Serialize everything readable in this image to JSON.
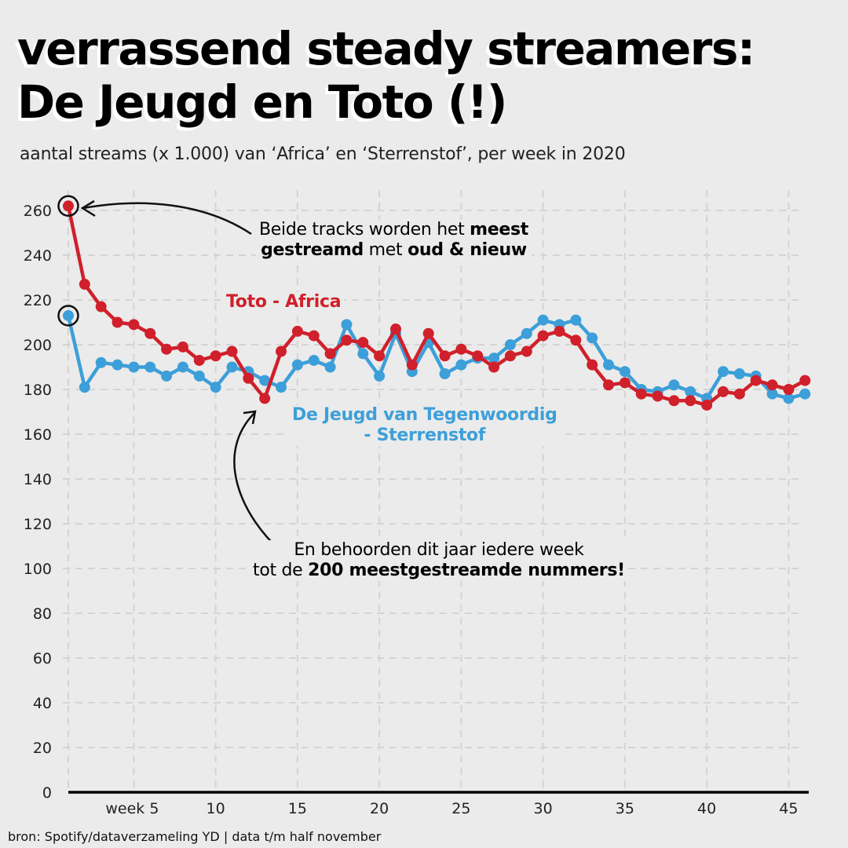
{
  "title": {
    "line1": "verrassend steady streamers:",
    "line2": "De Jeugd en Toto (!)"
  },
  "subtitle": "aantal streams (x 1.000) van ‘Africa’ en ‘Sterrenstof’, per week in 2020",
  "footer": "bron: Spotify/dataverzameling YD | data t/m half november",
  "annotations": {
    "top": {
      "l1_normal": "Beide tracks worden het ",
      "l1_bold": "meest",
      "l2_bold1": "gestreamd",
      "l2_normal": " met ",
      "l2_bold2": "oud & nieuw"
    },
    "bottom": {
      "l1": "En behoorden dit jaar iedere week",
      "l2_normal": "tot de ",
      "l2_bold": "200 meestgestreamde nummers!"
    }
  },
  "colors": {
    "toto": "#d0202b",
    "djvt": "#3d9fd9",
    "background": "#ebebeb",
    "grid": "#d4d4d4"
  },
  "chart_data": {
    "type": "line",
    "title": "verrassend steady streamers: De Jeugd en Toto (!)",
    "subtitle": "aantal streams (x 1.000) van ‘Africa’ en ‘Sterrenstof’, per week in 2020",
    "xlabel": "week",
    "ylabel": "aantal streams (x 1.000)",
    "xlim": [
      1,
      46
    ],
    "ylim": [
      0,
      260
    ],
    "grid": true,
    "y_ticks": [
      0,
      20,
      40,
      60,
      80,
      100,
      120,
      140,
      160,
      180,
      200,
      220,
      240,
      260
    ],
    "x_ticks": [
      {
        "week": 5,
        "label": "week 5"
      },
      {
        "week": 10,
        "label": "10"
      },
      {
        "week": 15,
        "label": "15"
      },
      {
        "week": 20,
        "label": "20"
      },
      {
        "week": 25,
        "label": "25"
      },
      {
        "week": 30,
        "label": "30"
      },
      {
        "week": 35,
        "label": "35"
      },
      {
        "week": 40,
        "label": "40"
      },
      {
        "week": 45,
        "label": "45"
      }
    ],
    "x": [
      1,
      2,
      3,
      4,
      5,
      6,
      7,
      8,
      9,
      10,
      11,
      12,
      13,
      14,
      15,
      16,
      17,
      18,
      19,
      20,
      21,
      22,
      23,
      24,
      25,
      26,
      27,
      28,
      29,
      30,
      31,
      32,
      33,
      34,
      35,
      36,
      37,
      38,
      39,
      40,
      41,
      42,
      43,
      44,
      45,
      46
    ],
    "series": [
      {
        "name": "De Jeugd van Tegenwoordig - Sterrenstof",
        "label_line1": "De Jeugd van Tegenwoordig",
        "label_line2": "- Sterrenstof",
        "color": "#3d9fd9",
        "values": [
          213,
          181,
          192,
          191,
          190,
          190,
          186,
          190,
          186,
          181,
          190,
          188,
          184,
          181,
          191,
          193,
          190,
          209,
          196,
          186,
          205,
          188,
          201,
          187,
          191,
          194,
          194,
          200,
          205,
          211,
          209,
          211,
          203,
          191,
          188,
          180,
          179,
          182,
          179,
          176,
          188,
          187,
          186,
          178,
          176,
          178
        ]
      },
      {
        "name": "Toto - Africa",
        "label_line1": "Toto - Africa",
        "color": "#d0202b",
        "values": [
          262,
          227,
          217,
          210,
          209,
          205,
          198,
          199,
          193,
          195,
          197,
          185,
          176,
          197,
          206,
          204,
          196,
          202,
          201,
          195,
          207,
          191,
          205,
          195,
          198,
          195,
          190,
          195,
          197,
          204,
          206,
          202,
          191,
          182,
          183,
          178,
          177,
          175,
          175,
          173,
          179,
          178,
          184,
          182,
          180,
          184
        ]
      }
    ],
    "highlighted_points": [
      {
        "series": "Toto - Africa",
        "week": 1
      },
      {
        "series": "De Jeugd van Tegenwoordig - Sterrenstof",
        "week": 1
      }
    ]
  }
}
